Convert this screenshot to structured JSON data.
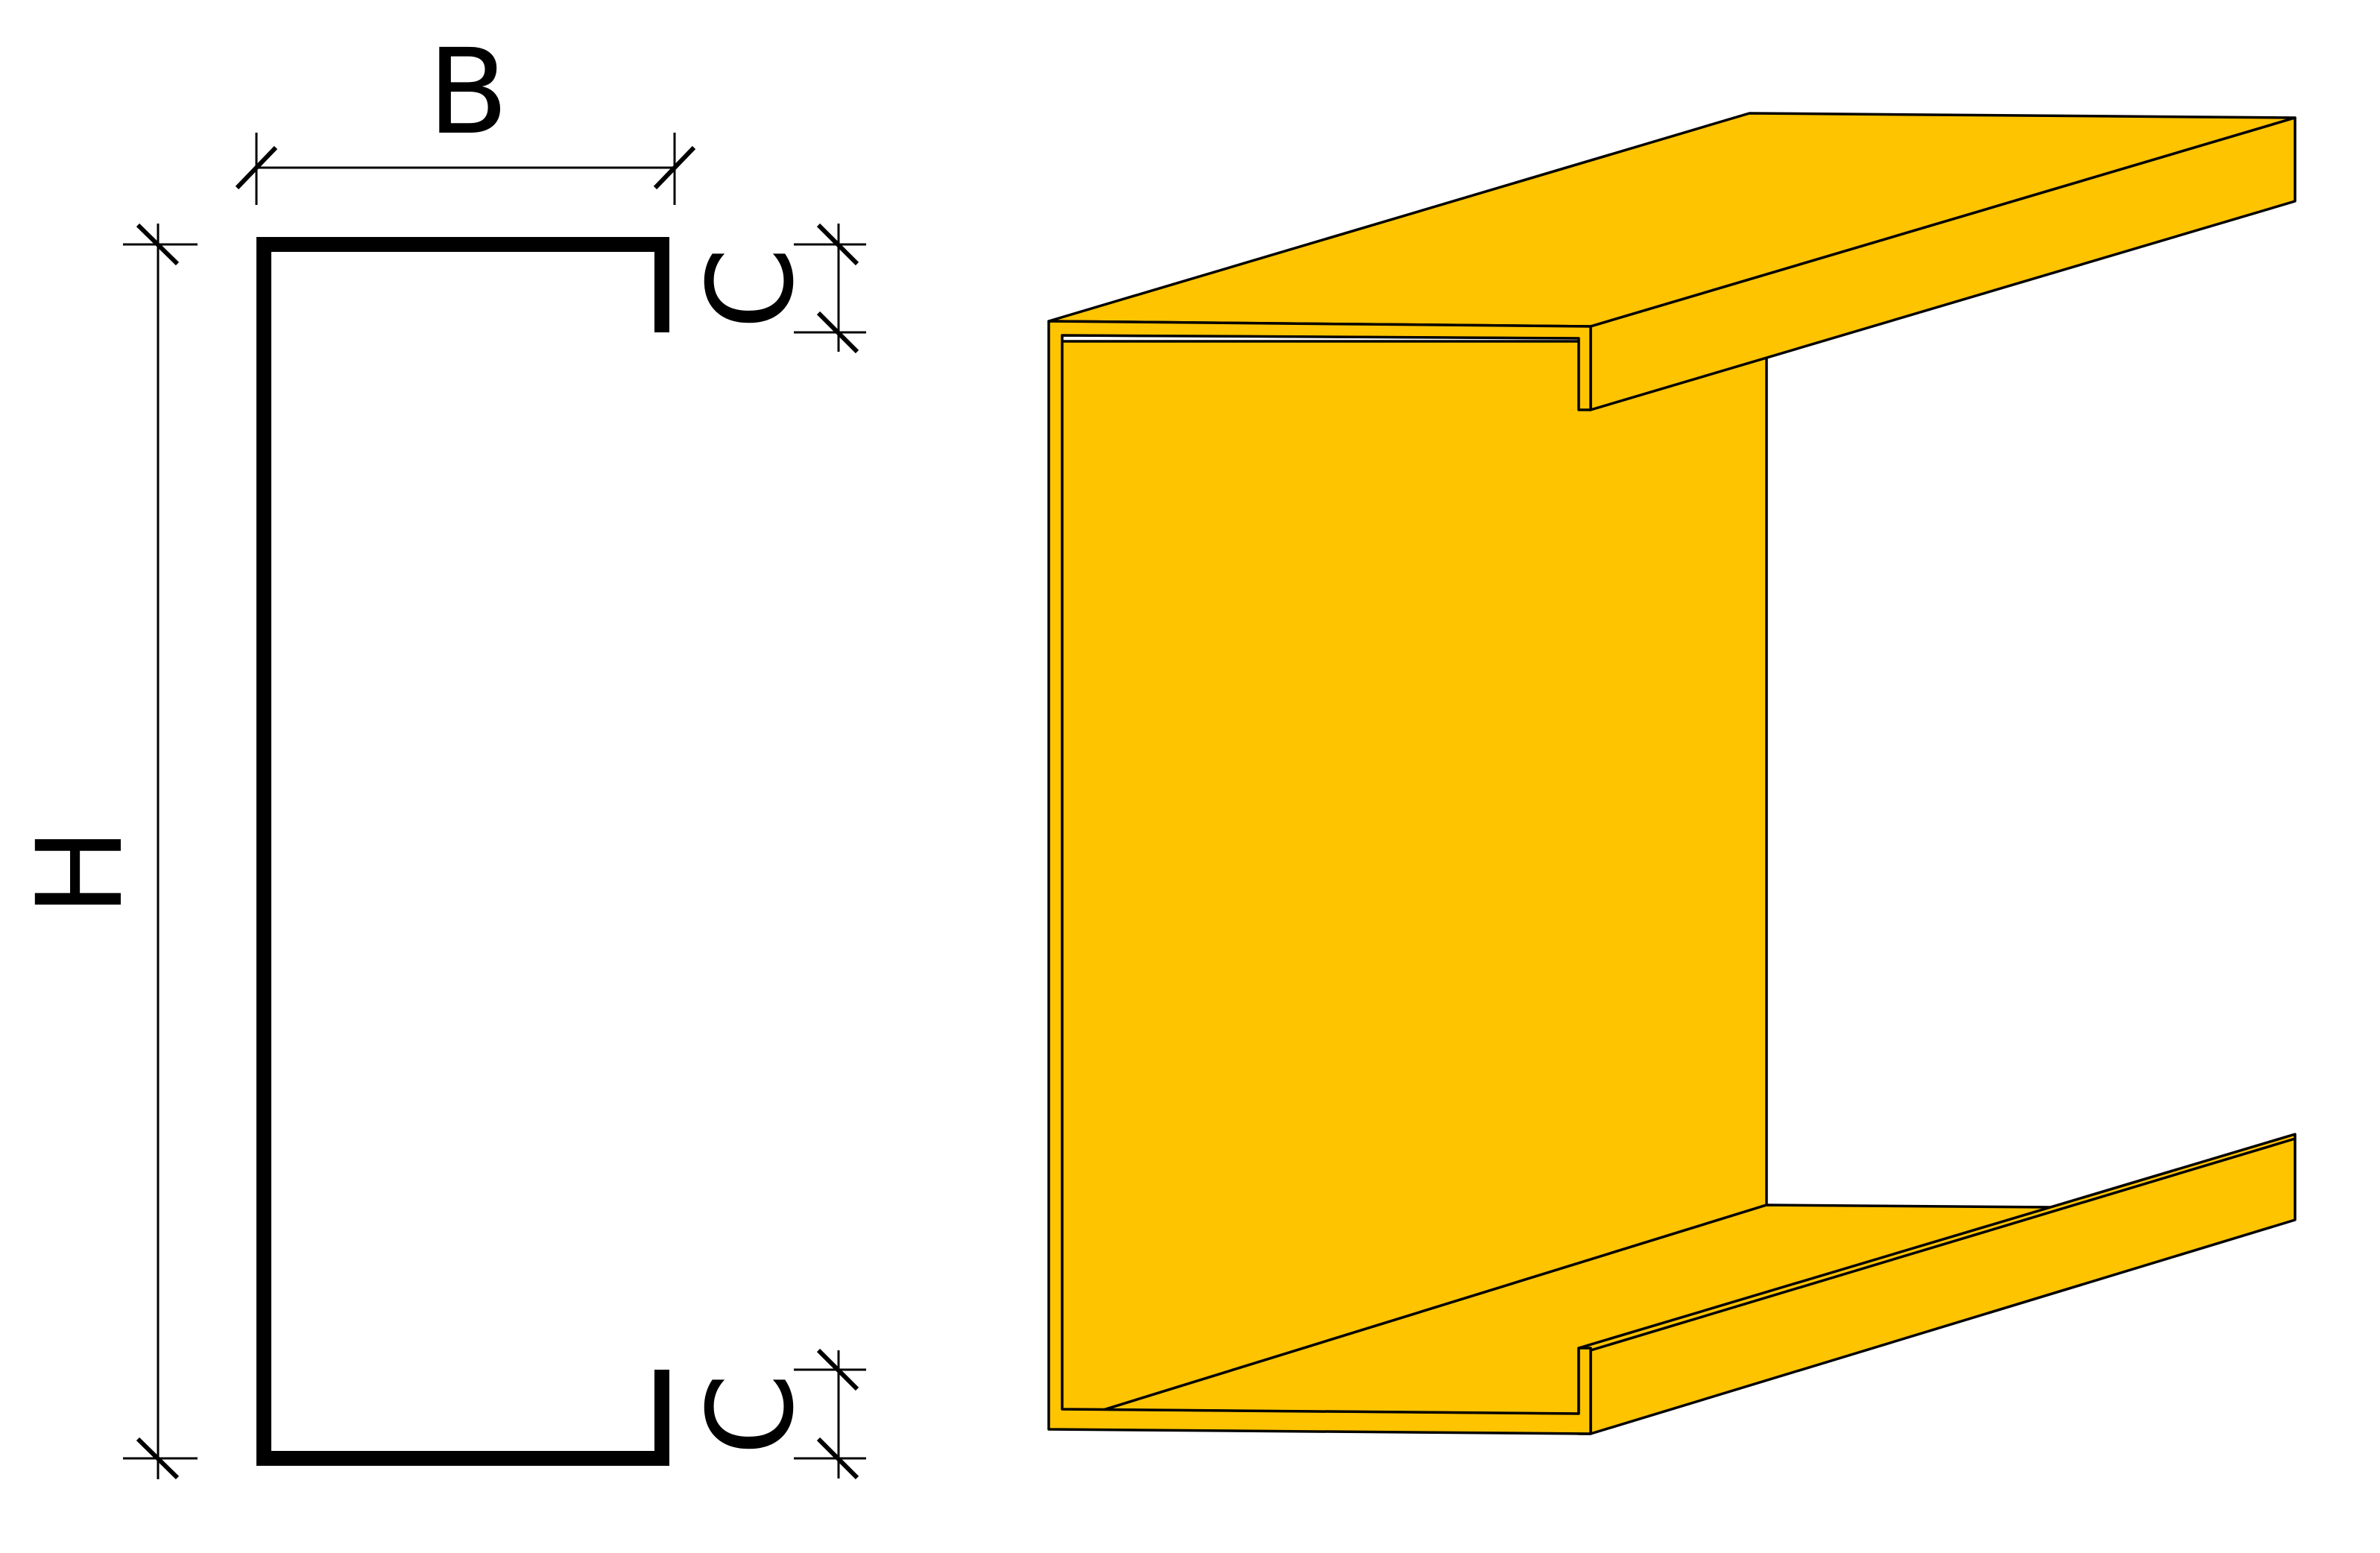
{
  "labels": {
    "width": "B",
    "height": "H",
    "lip_top": "C",
    "lip_bottom": "C"
  },
  "colors": {
    "background": "#ffffff",
    "profile_line": "#000000",
    "dimension_line": "#000000",
    "fill": "#ffc400",
    "fill_side": "#f2b800",
    "edge": "#000000"
  }
}
